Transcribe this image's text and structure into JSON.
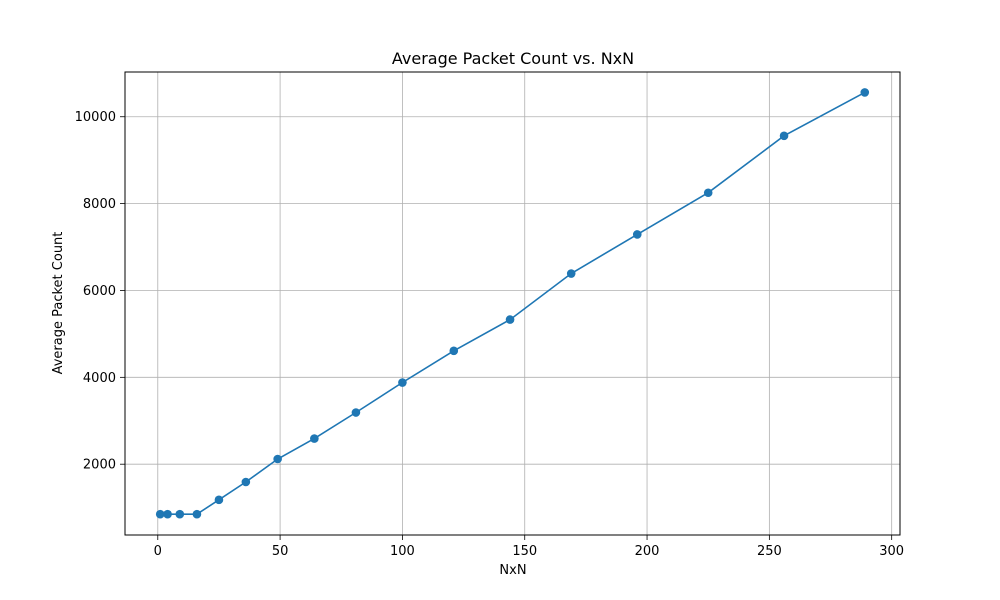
{
  "chart_data": {
    "type": "line",
    "title": "Average Packet Count vs. NxN",
    "xlabel": "NxN",
    "ylabel": "Average Packet Count",
    "xlim": [
      -13.4,
      303.4
    ],
    "ylim": [
      370,
      11030
    ],
    "xticks": [
      0,
      50,
      100,
      150,
      200,
      250,
      300
    ],
    "yticks": [
      2000,
      4000,
      6000,
      8000,
      10000
    ],
    "grid": true,
    "series": [
      {
        "color": "#1f77b4",
        "marker": "circle",
        "x": [
          1,
          4,
          9,
          16,
          25,
          36,
          49,
          64,
          81,
          100,
          121,
          144,
          169,
          196,
          225,
          256,
          289
        ],
        "y": [
          850,
          850,
          850,
          850,
          1180,
          1590,
          2120,
          2590,
          3190,
          3880,
          4610,
          5330,
          6390,
          7290,
          8250,
          9560,
          10560
        ]
      }
    ]
  }
}
